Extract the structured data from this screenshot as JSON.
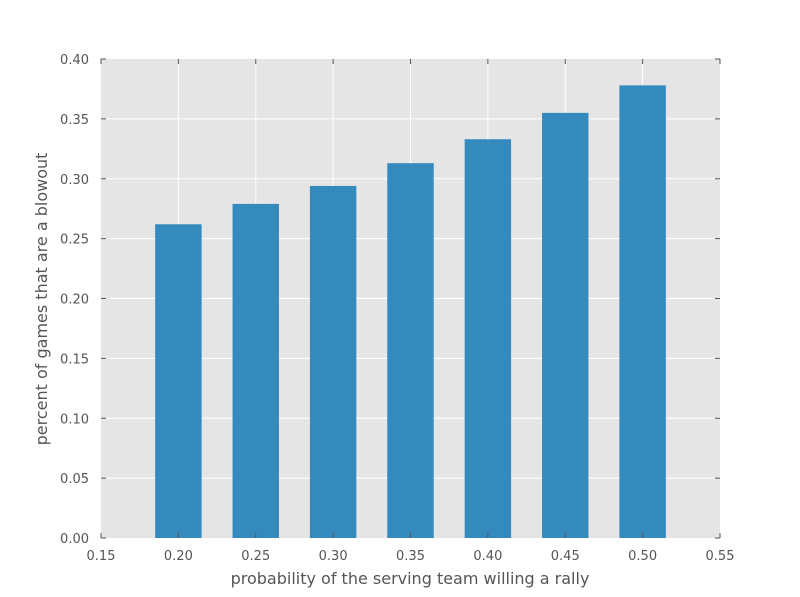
{
  "chart_data": {
    "type": "bar",
    "x": [
      0.2,
      0.25,
      0.3,
      0.35,
      0.4,
      0.45,
      0.5
    ],
    "values": [
      0.262,
      0.279,
      0.294,
      0.313,
      0.333,
      0.355,
      0.378
    ],
    "bar_width": 0.03,
    "title": "",
    "xlabel": "probability of the serving team willing a rally",
    "ylabel": "percent of games that are a blowout",
    "xlim": [
      0.15,
      0.55
    ],
    "ylim": [
      0.0,
      0.4
    ],
    "xticks": [
      "0.15",
      "0.20",
      "0.25",
      "0.30",
      "0.35",
      "0.40",
      "0.45",
      "0.50",
      "0.55"
    ],
    "yticks": [
      "0.00",
      "0.05",
      "0.10",
      "0.15",
      "0.20",
      "0.25",
      "0.30",
      "0.35",
      "0.40"
    ],
    "grid": true,
    "colors": {
      "bar": "#348abd",
      "plot_background": "#e5e5e5",
      "grid": "#ffffff",
      "text": "#555555"
    }
  }
}
